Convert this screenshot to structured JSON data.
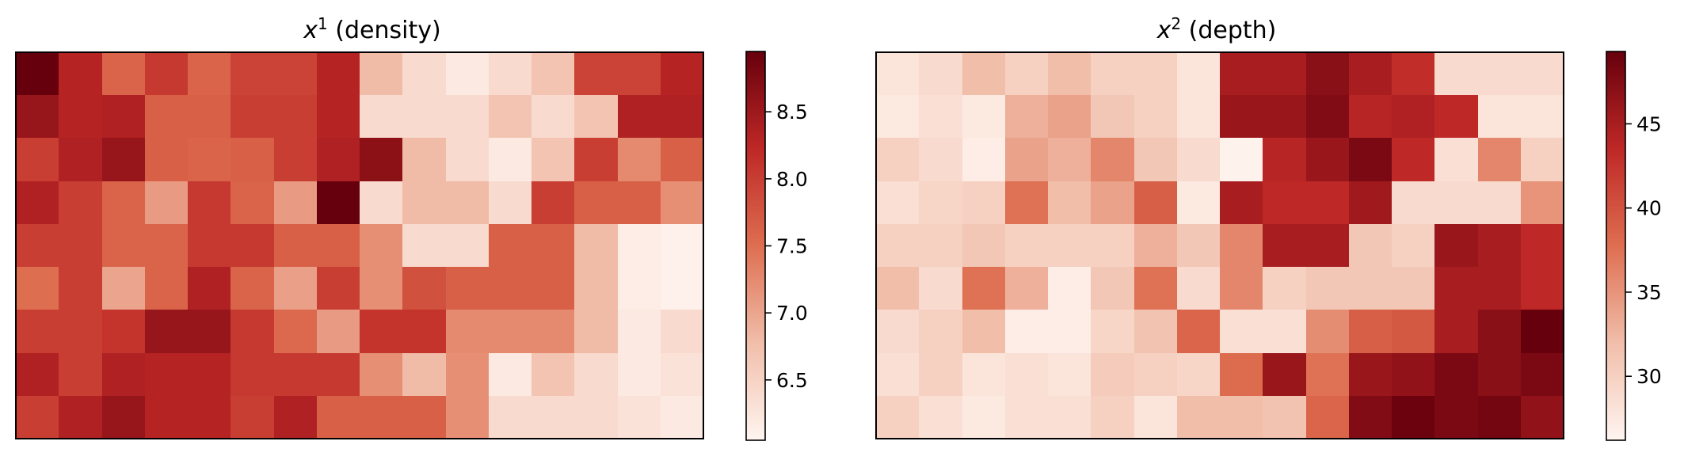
{
  "chart_data": [
    {
      "type": "heatmap",
      "title": {
        "var": "x",
        "sup": "1",
        "rest": " (density)"
      },
      "rows": 9,
      "cols": 16,
      "colorbar": {
        "min": 6.05,
        "max": 8.95,
        "ticks": [
          "6.5",
          "7.0",
          "7.5",
          "8.0",
          "8.5"
        ],
        "tick_values": [
          6.5,
          7.0,
          7.5,
          8.0,
          8.5
        ]
      },
      "values": [
        [
          8.95,
          8.3,
          7.6,
          8.05,
          7.6,
          7.95,
          7.95,
          8.3,
          6.8,
          6.4,
          6.2,
          6.4,
          6.7,
          7.95,
          7.95,
          8.3
        ],
        [
          8.55,
          8.3,
          8.35,
          7.65,
          7.65,
          8.0,
          8.0,
          8.3,
          6.4,
          6.4,
          6.4,
          6.7,
          6.4,
          6.7,
          8.35,
          8.35
        ],
        [
          8.0,
          8.35,
          8.55,
          7.65,
          7.6,
          7.65,
          8.0,
          8.35,
          8.65,
          6.8,
          6.4,
          6.2,
          6.7,
          8.0,
          7.25,
          7.65
        ],
        [
          8.35,
          8.0,
          7.6,
          7.1,
          8.05,
          7.6,
          7.1,
          8.95,
          6.4,
          6.8,
          6.8,
          6.4,
          8.0,
          7.65,
          7.65,
          7.2
        ],
        [
          8.0,
          8.0,
          7.6,
          7.6,
          8.05,
          8.05,
          7.65,
          7.65,
          7.2,
          6.4,
          6.4,
          7.65,
          7.65,
          6.8,
          6.15,
          6.1
        ],
        [
          7.5,
          8.0,
          7.0,
          7.6,
          8.35,
          7.6,
          7.05,
          8.0,
          7.2,
          7.8,
          7.65,
          7.65,
          7.65,
          6.8,
          6.15,
          6.1
        ],
        [
          8.0,
          8.0,
          8.1,
          8.55,
          8.55,
          8.05,
          7.55,
          7.1,
          8.1,
          8.1,
          7.25,
          7.25,
          7.25,
          6.8,
          6.2,
          6.4
        ],
        [
          8.35,
          8.0,
          8.35,
          8.3,
          8.3,
          8.05,
          8.05,
          8.05,
          7.2,
          6.8,
          7.2,
          6.2,
          6.7,
          6.4,
          6.2,
          6.3
        ],
        [
          8.0,
          8.35,
          8.55,
          8.3,
          8.3,
          8.0,
          8.35,
          7.65,
          7.65,
          7.65,
          7.2,
          6.4,
          6.4,
          6.4,
          6.3,
          6.2
        ]
      ]
    },
    {
      "type": "heatmap",
      "title": {
        "var": "x",
        "sup": "2",
        "rest": " (depth)"
      },
      "rows": 9,
      "cols": 16,
      "colorbar": {
        "min": 26.2,
        "max": 49.3,
        "ticks": [
          "30",
          "35",
          "40",
          "45"
        ],
        "tick_values": [
          30,
          35,
          40,
          45
        ]
      },
      "values": [
        [
          28.0,
          29.0,
          32.0,
          30.0,
          32.0,
          30.0,
          30.0,
          28.0,
          45.0,
          45.0,
          47.0,
          45.0,
          43.0,
          29.0,
          29.0,
          29.0
        ],
        [
          27.5,
          28.5,
          27.5,
          33.0,
          34.0,
          31.0,
          30.0,
          28.0,
          46.0,
          46.0,
          47.5,
          44.0,
          44.5,
          43.5,
          28.0,
          28.0
        ],
        [
          30.0,
          29.0,
          27.0,
          34.0,
          33.0,
          36.0,
          31.0,
          29.0,
          26.5,
          44.0,
          46.0,
          48.0,
          43.5,
          28.5,
          36.0,
          30.0
        ],
        [
          28.5,
          29.5,
          30.0,
          37.5,
          32.0,
          34.0,
          39.0,
          27.5,
          45.0,
          43.5,
          43.5,
          45.5,
          29.0,
          29.0,
          29.0,
          35.0
        ],
        [
          30.0,
          30.0,
          31.0,
          30.0,
          30.0,
          30.0,
          33.0,
          31.0,
          36.0,
          45.0,
          45.0,
          31.0,
          30.0,
          46.0,
          45.0,
          43.5
        ],
        [
          32.0,
          29.0,
          37.5,
          33.0,
          27.0,
          31.0,
          37.5,
          29.0,
          36.0,
          30.0,
          31.0,
          31.0,
          31.0,
          45.0,
          45.0,
          43.5
        ],
        [
          29.0,
          30.0,
          32.0,
          27.0,
          27.0,
          29.5,
          31.5,
          38.5,
          28.5,
          28.5,
          35.5,
          39.0,
          39.5,
          45.0,
          47.0,
          49.3
        ],
        [
          28.5,
          30.0,
          28.0,
          28.5,
          28.0,
          30.5,
          30.0,
          29.5,
          38.0,
          46.0,
          37.5,
          46.0,
          46.5,
          48.0,
          47.0,
          48.0
        ],
        [
          30.0,
          28.5,
          27.5,
          28.5,
          28.5,
          30.0,
          28.0,
          32.0,
          32.0,
          31.5,
          38.5,
          47.5,
          49.0,
          48.0,
          48.5,
          46.5
        ]
      ]
    }
  ]
}
